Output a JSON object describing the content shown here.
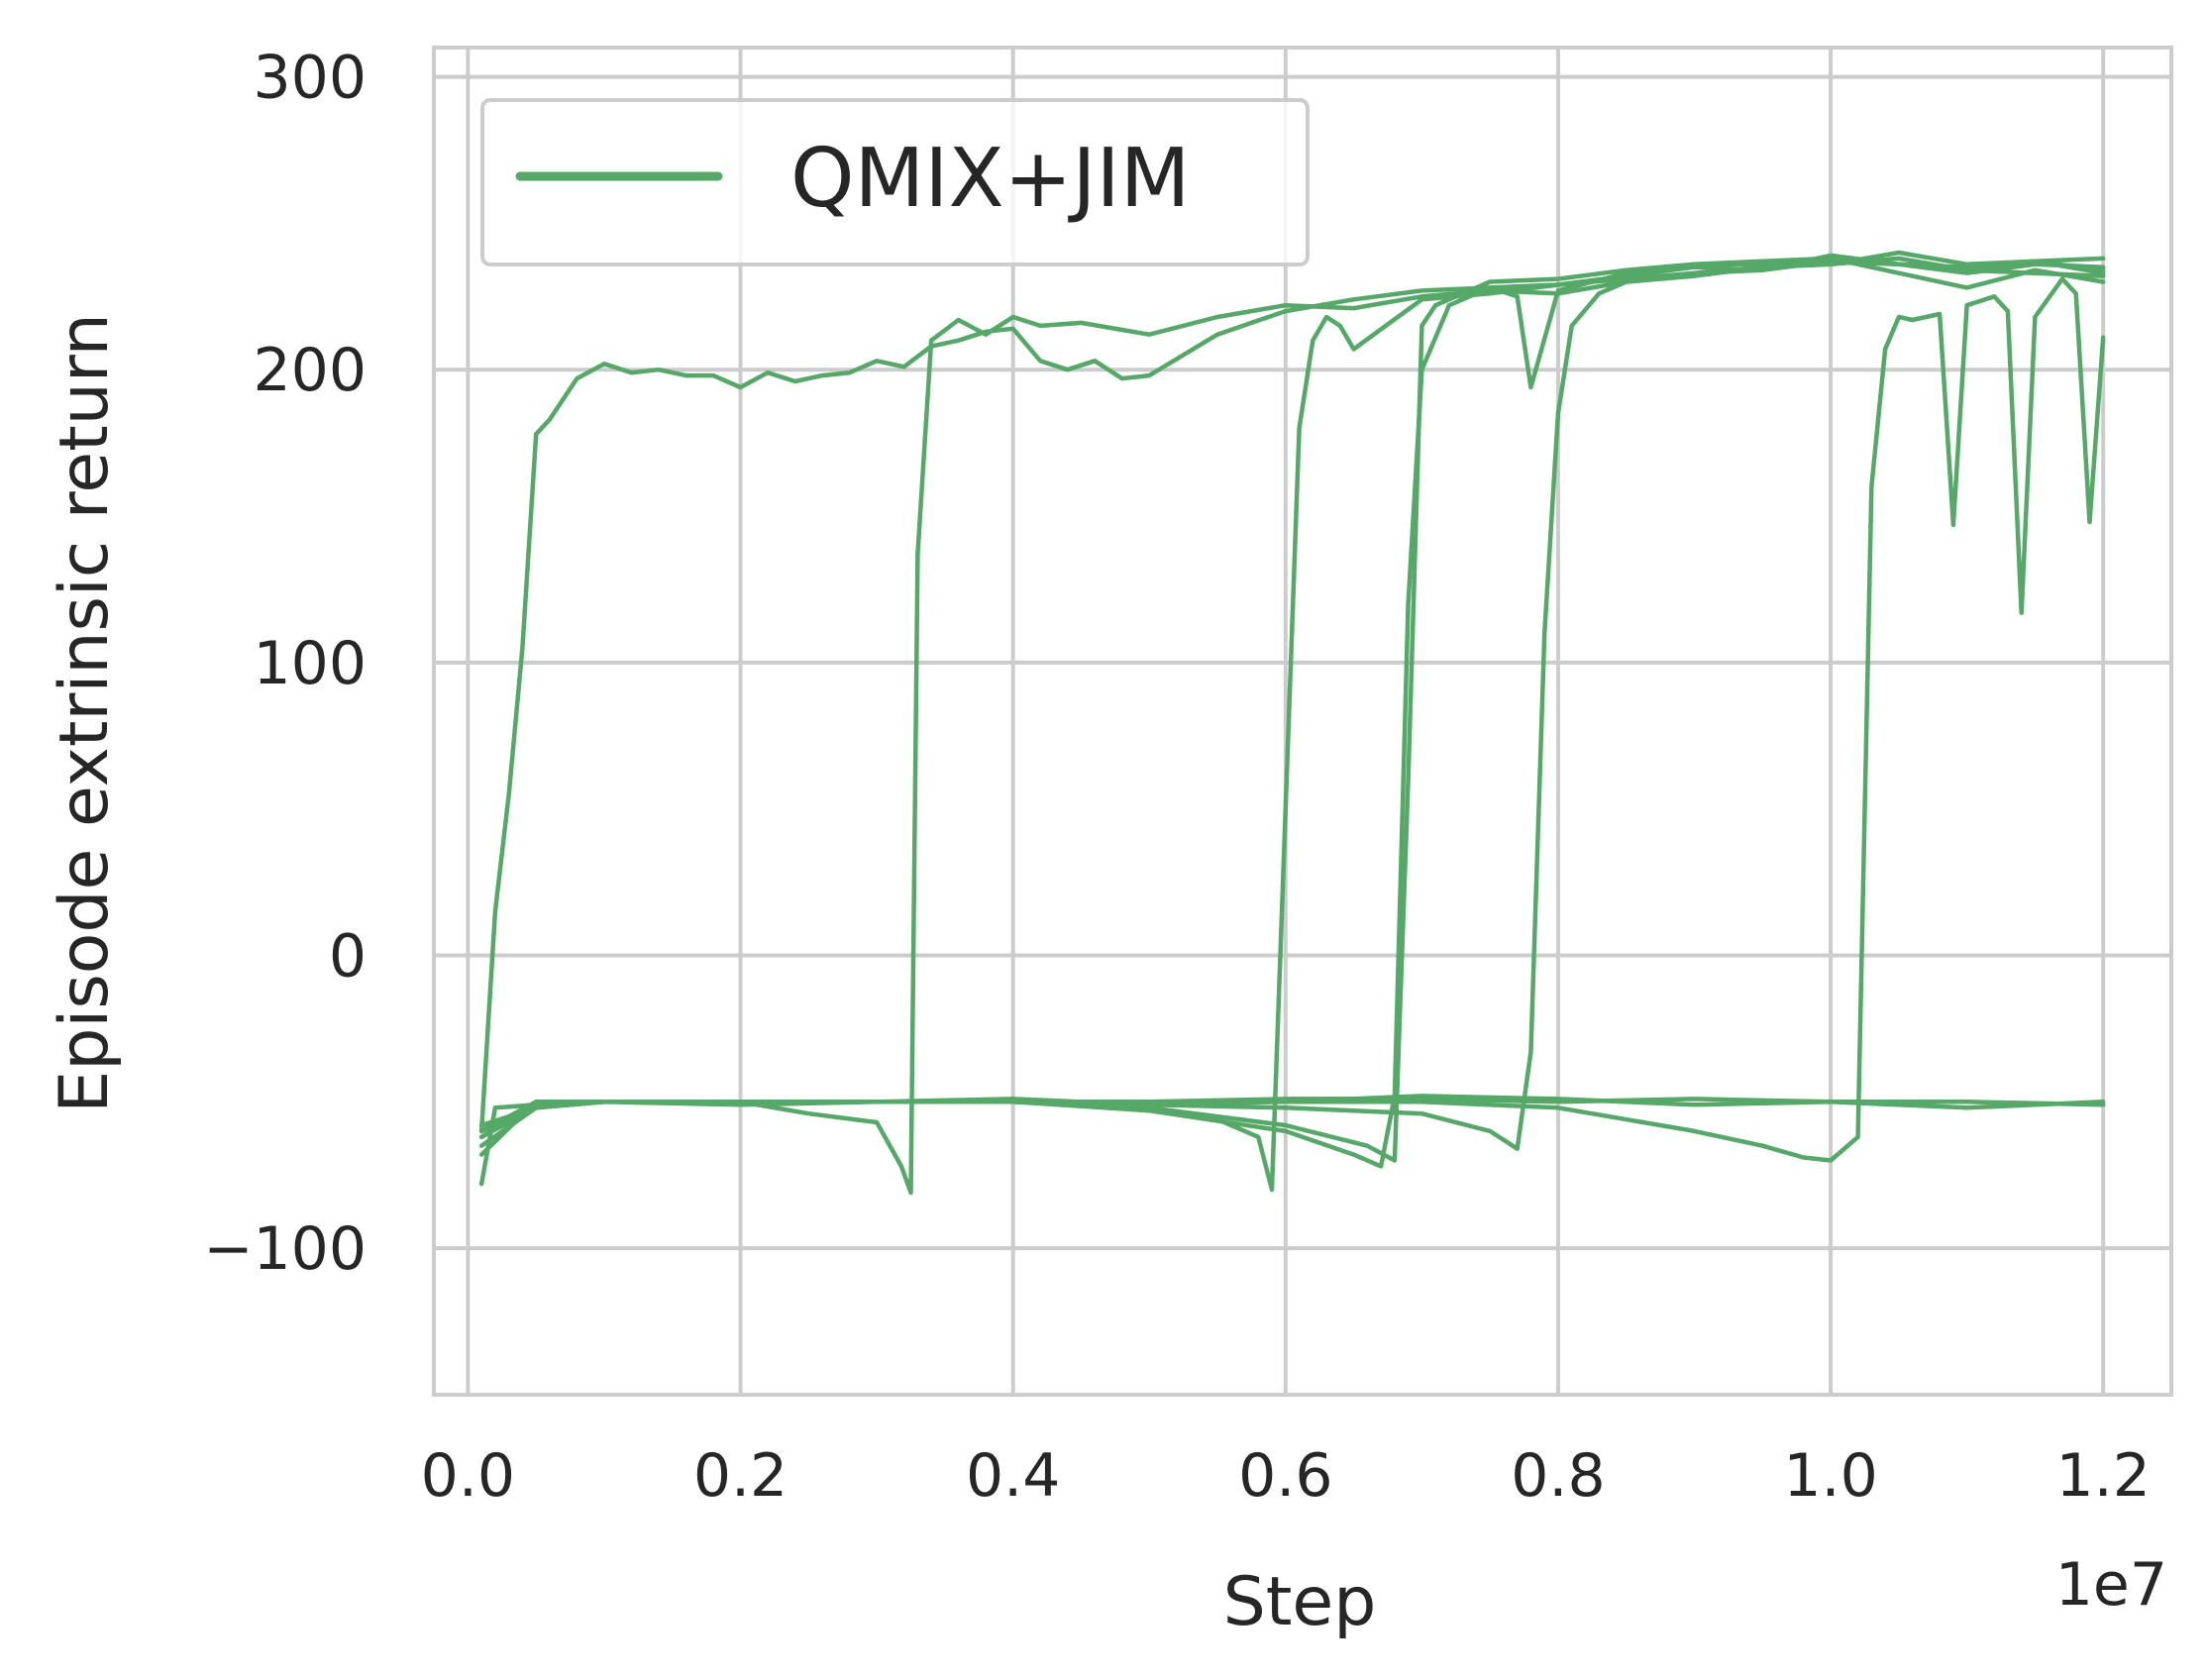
{
  "chart_data": {
    "type": "line",
    "xlabel": "Step",
    "ylabel": "Episode extrinsic return",
    "x_offset_label": "1e7",
    "x_scale": 10000000,
    "xlim": [
      -0.025,
      1.25
    ],
    "ylim": [
      -150,
      310
    ],
    "x_ticks": [
      0.0,
      0.2,
      0.4,
      0.6,
      0.8,
      1.0,
      1.2
    ],
    "x_tick_labels": [
      "0.0",
      "0.2",
      "0.4",
      "0.6",
      "0.8",
      "1.0",
      "1.2"
    ],
    "y_ticks": [
      -100,
      0,
      100,
      200,
      300
    ],
    "y_tick_labels": [
      "−100",
      "0",
      "100",
      "200",
      "300"
    ],
    "grid": true,
    "legend_position": "top-left",
    "color": "#55a868",
    "legend": [
      {
        "label": "QMIX+JIM",
        "color": "#55a868"
      }
    ],
    "series": [
      {
        "x": [
          0.01,
          0.02,
          0.03,
          0.04,
          0.05,
          0.06,
          0.08,
          0.1,
          0.12,
          0.14,
          0.16,
          0.18,
          0.2,
          0.22,
          0.24,
          0.26,
          0.28,
          0.3,
          0.32,
          0.34,
          0.36,
          0.38,
          0.4,
          0.42,
          0.44,
          0.46,
          0.48,
          0.5,
          0.55,
          0.6,
          0.65,
          0.7,
          0.75,
          0.8,
          0.85,
          0.9,
          0.95,
          1.0,
          1.05,
          1.1,
          1.15,
          1.2
        ],
        "y": [
          -60,
          15,
          55,
          105,
          178,
          183,
          197,
          202,
          199,
          200,
          198,
          198,
          194,
          199,
          196,
          198,
          199,
          203,
          201,
          208,
          210,
          213,
          214,
          203,
          200,
          203,
          197,
          198,
          212,
          220,
          224,
          227,
          228,
          229,
          231,
          233,
          234,
          237,
          236,
          233,
          236,
          235
        ]
      },
      {
        "x": [
          0.01,
          0.02,
          0.05,
          0.1,
          0.15,
          0.2,
          0.25,
          0.3,
          0.318,
          0.325,
          0.33,
          0.34,
          0.36,
          0.38,
          0.4,
          0.42,
          0.45,
          0.5,
          0.55,
          0.6,
          0.65,
          0.7,
          0.75,
          0.8,
          0.85,
          0.9,
          0.95,
          1.0,
          1.05,
          1.1,
          1.15,
          1.2
        ],
        "y": [
          -78,
          -52,
          -51,
          -50,
          -50,
          -50,
          -54,
          -57,
          -72,
          -81,
          137,
          210,
          217,
          212,
          218,
          215,
          216,
          212,
          218,
          222,
          221,
          225,
          227,
          226,
          230,
          233,
          235,
          236,
          238,
          234,
          237,
          234
        ]
      },
      {
        "x": [
          0.01,
          0.05,
          0.1,
          0.2,
          0.3,
          0.4,
          0.5,
          0.55,
          0.58,
          0.59,
          0.6,
          0.61,
          0.62,
          0.63,
          0.64,
          0.65,
          0.7,
          0.75,
          0.8,
          0.85,
          0.9,
          0.95,
          1.0,
          1.05,
          1.1,
          1.15,
          1.2
        ],
        "y": [
          -62,
          -52,
          -50,
          -50,
          -50,
          -50,
          -52,
          -56,
          -62,
          -80,
          50,
          180,
          210,
          218,
          215,
          207,
          224,
          226,
          229,
          232,
          235,
          234,
          239,
          236,
          235,
          237,
          233
        ]
      },
      {
        "x": [
          0.01,
          0.05,
          0.1,
          0.2,
          0.3,
          0.4,
          0.5,
          0.6,
          0.65,
          0.67,
          0.68,
          0.69,
          0.7,
          0.72,
          0.75,
          0.77,
          0.78,
          0.8,
          0.85,
          0.9,
          0.95,
          1.0,
          1.05,
          1.1,
          1.15,
          1.2
        ],
        "y": [
          -65,
          -52,
          -50,
          -50,
          -50,
          -50,
          -53,
          -60,
          -68,
          -72,
          -48,
          120,
          200,
          222,
          228,
          225,
          194,
          227,
          233,
          236,
          237,
          238,
          233,
          228,
          234,
          230
        ]
      },
      {
        "x": [
          0.01,
          0.05,
          0.1,
          0.2,
          0.3,
          0.4,
          0.5,
          0.6,
          0.66,
          0.68,
          0.69,
          0.7,
          0.71,
          0.75,
          0.8,
          0.85,
          0.9,
          0.95,
          1.0,
          1.05,
          1.1,
          1.15,
          1.2
        ],
        "y": [
          -68,
          -50,
          -50,
          -50,
          -50,
          -50,
          -52,
          -58,
          -65,
          -70,
          60,
          215,
          222,
          230,
          231,
          234,
          236,
          236,
          237,
          236,
          234,
          233,
          232
        ]
      },
      {
        "x": [
          0.01,
          0.05,
          0.1,
          0.2,
          0.3,
          0.4,
          0.5,
          0.6,
          0.7,
          0.75,
          0.77,
          0.78,
          0.79,
          0.8,
          0.81,
          0.83,
          0.85,
          0.9,
          0.95,
          1.0,
          1.05,
          1.1,
          1.15,
          1.2
        ],
        "y": [
          -62,
          -50,
          -50,
          -50,
          -50,
          -50,
          -51,
          -52,
          -54,
          -60,
          -66,
          -33,
          110,
          185,
          215,
          226,
          230,
          232,
          235,
          236,
          240,
          236,
          237,
          238
        ]
      },
      {
        "x": [
          0.01,
          0.05,
          0.1,
          0.2,
          0.3,
          0.4,
          0.5,
          0.6,
          0.7,
          0.8,
          0.9,
          0.95,
          0.98,
          1.0,
          1.02,
          1.03,
          1.04,
          1.05,
          1.06,
          1.08,
          1.09,
          1.1,
          1.12,
          1.13,
          1.14,
          1.15,
          1.17,
          1.18,
          1.19,
          1.2
        ],
        "y": [
          -60,
          -50,
          -50,
          -50,
          -50,
          -50,
          -50,
          -50,
          -50,
          -52,
          -60,
          -65,
          -69,
          -70,
          -62,
          160,
          207,
          218,
          217,
          219,
          147,
          222,
          225,
          220,
          117,
          218,
          231,
          226,
          148,
          211
        ]
      },
      {
        "x": [
          0.01,
          0.05,
          0.1,
          0.2,
          0.3,
          0.4,
          0.5,
          0.6,
          0.7,
          0.8,
          0.9,
          1.0,
          1.1,
          1.2
        ],
        "y": [
          -60,
          -51,
          -50,
          -50,
          -50,
          -50,
          -50,
          -49,
          -49,
          -50,
          -49,
          -50,
          -50,
          -51
        ]
      },
      {
        "x": [
          0.01,
          0.05,
          0.1,
          0.2,
          0.3,
          0.4,
          0.5,
          0.6,
          0.7,
          0.8,
          0.9,
          1.0,
          1.1,
          1.2
        ],
        "y": [
          -58,
          -52,
          -50,
          -51,
          -50,
          -49,
          -51,
          -50,
          -48,
          -49,
          -51,
          -50,
          -52,
          -50
        ]
      }
    ]
  }
}
